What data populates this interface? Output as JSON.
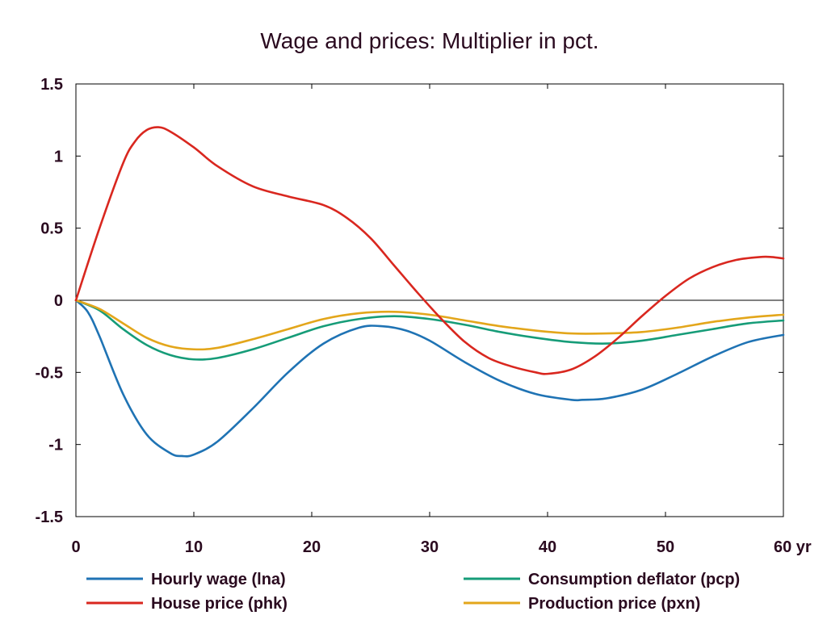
{
  "chart_data": {
    "type": "line",
    "title": "Wage and prices: Multiplier in pct.",
    "x_ticks": [
      0,
      10,
      20,
      30,
      40,
      50,
      60
    ],
    "x_tick_labels": [
      "0",
      "10",
      "20",
      "30",
      "40",
      "50",
      "60 yr"
    ],
    "y_ticks": [
      1.5,
      1,
      0.5,
      0,
      -0.5,
      -1,
      -1.5
    ],
    "y_tick_labels": [
      "1.5",
      "1",
      "0.5",
      "0",
      "-0.5",
      "-1",
      "-1.5"
    ],
    "xlim": [
      0,
      60
    ],
    "ylim": [
      -1.5,
      1.5
    ],
    "grid": false,
    "legend_position": "bottom",
    "series": [
      {
        "name": "Hourly wage (lna)",
        "color": "#1f73b4",
        "x": [
          0,
          1,
          2,
          4,
          6,
          8,
          9,
          10,
          12,
          15,
          18,
          21,
          24,
          26,
          28,
          30,
          33,
          36,
          39,
          42,
          43,
          45,
          48,
          51,
          54,
          57,
          60
        ],
        "y": [
          0,
          -0.08,
          -0.25,
          -0.65,
          -0.93,
          -1.06,
          -1.08,
          -1.07,
          -0.98,
          -0.75,
          -0.5,
          -0.3,
          -0.19,
          -0.18,
          -0.21,
          -0.28,
          -0.43,
          -0.56,
          -0.65,
          -0.69,
          -0.69,
          -0.68,
          -0.62,
          -0.51,
          -0.39,
          -0.29,
          -0.24
        ]
      },
      {
        "name": "House price (phk)",
        "color": "#d9271f",
        "x": [
          0,
          2,
          4,
          5,
          6,
          7,
          8,
          10,
          12,
          15,
          18,
          21,
          23,
          25,
          27,
          29,
          31,
          33,
          35,
          37,
          39,
          40,
          42,
          44,
          46,
          48,
          50,
          52,
          54,
          56,
          58,
          59,
          60
        ],
        "y": [
          0,
          0.5,
          0.95,
          1.1,
          1.18,
          1.2,
          1.17,
          1.06,
          0.93,
          0.79,
          0.72,
          0.66,
          0.57,
          0.43,
          0.24,
          0.05,
          -0.13,
          -0.29,
          -0.4,
          -0.46,
          -0.5,
          -0.51,
          -0.48,
          -0.39,
          -0.26,
          -0.11,
          0.03,
          0.15,
          0.23,
          0.28,
          0.3,
          0.3,
          0.29
        ]
      },
      {
        "name": "Consumption deflator (pcp)",
        "color": "#169c78",
        "x": [
          0,
          2,
          4,
          6,
          8,
          10,
          12,
          15,
          18,
          21,
          24,
          27,
          30,
          33,
          36,
          39,
          42,
          45,
          48,
          51,
          54,
          57,
          60
        ],
        "y": [
          0,
          -0.07,
          -0.2,
          -0.31,
          -0.38,
          -0.41,
          -0.4,
          -0.34,
          -0.26,
          -0.18,
          -0.13,
          -0.11,
          -0.13,
          -0.17,
          -0.22,
          -0.26,
          -0.29,
          -0.3,
          -0.28,
          -0.24,
          -0.2,
          -0.16,
          -0.14
        ]
      },
      {
        "name": "Production price (pxn)",
        "color": "#e3a61b",
        "x": [
          0,
          2,
          4,
          6,
          8,
          10,
          12,
          15,
          18,
          21,
          24,
          27,
          30,
          33,
          36,
          39,
          42,
          45,
          48,
          51,
          54,
          57,
          60
        ],
        "y": [
          0,
          -0.06,
          -0.16,
          -0.26,
          -0.32,
          -0.34,
          -0.33,
          -0.27,
          -0.2,
          -0.13,
          -0.09,
          -0.08,
          -0.1,
          -0.14,
          -0.18,
          -0.21,
          -0.23,
          -0.23,
          -0.22,
          -0.19,
          -0.15,
          -0.12,
          -0.1
        ]
      }
    ]
  }
}
